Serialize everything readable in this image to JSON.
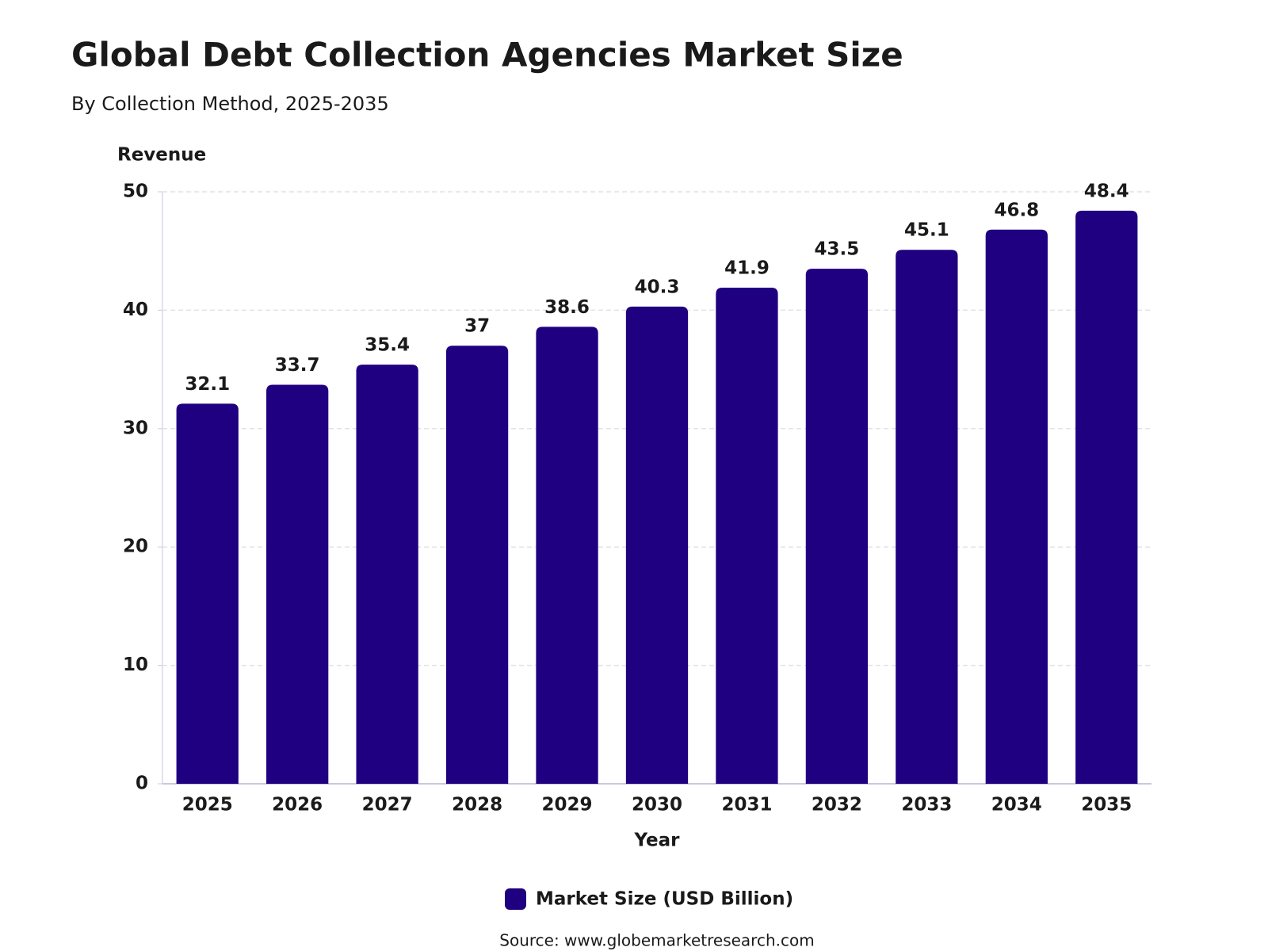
{
  "chart_data": {
    "type": "bar",
    "title": "Global Debt Collection Agencies Market Size",
    "subtitle": "By Collection Method, 2025-2035",
    "y_label": "Revenue",
    "x_label": "Year",
    "categories": [
      "2025",
      "2026",
      "2027",
      "2028",
      "2029",
      "2030",
      "2031",
      "2032",
      "2033",
      "2034",
      "2035"
    ],
    "series": [
      {
        "name": "Market Size (USD Billion)",
        "color": "#1f0080",
        "values": [
          32.1,
          33.7,
          35.4,
          37,
          38.6,
          40.3,
          41.9,
          43.5,
          45.1,
          46.8,
          48.4
        ]
      }
    ],
    "ylim": [
      0,
      50
    ],
    "yticks": [
      0,
      10,
      20,
      30,
      40,
      50
    ],
    "grid": true,
    "source": "Source: www.globemarketresearch.com"
  }
}
